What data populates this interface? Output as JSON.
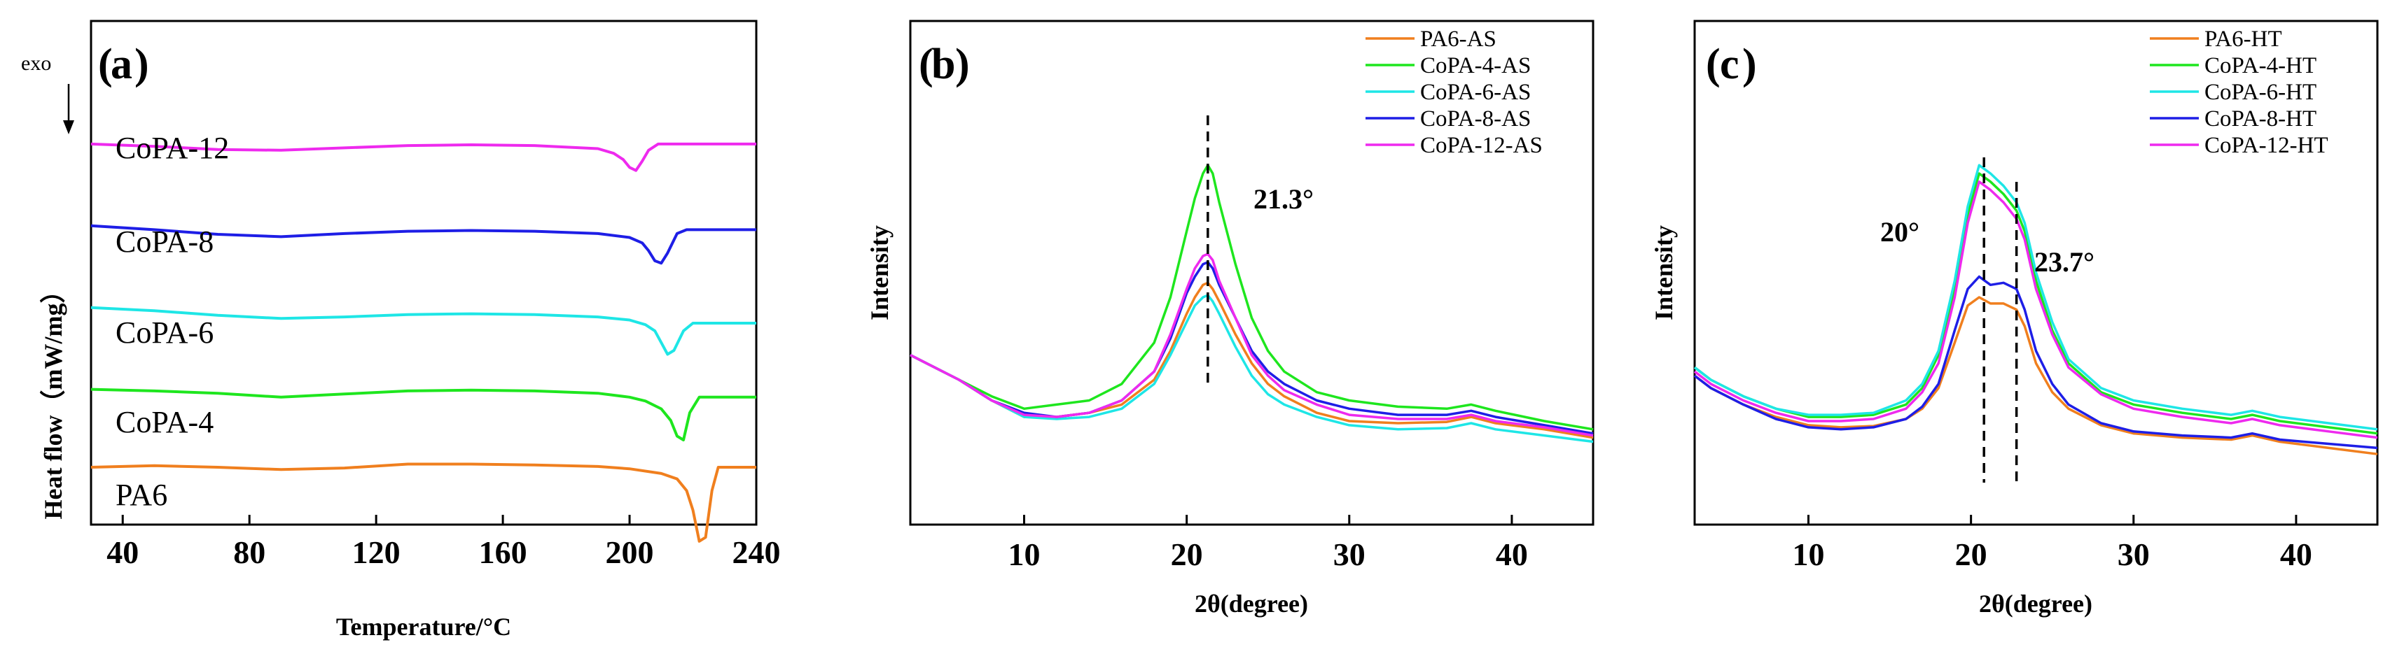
{
  "chart_data": [
    {
      "panel": "(a)",
      "panel_letter": "a",
      "type": "line",
      "title": "",
      "xlabel": "Temperature/°C",
      "ylabel": "Heat flow（mW/mg）",
      "direction_label": "exo",
      "xlim": [
        30,
        240
      ],
      "xticks": [
        40,
        80,
        120,
        160,
        200,
        240
      ],
      "grid": false,
      "series": [
        {
          "name": "PA6",
          "color": "#f07f1e",
          "offset": 0.0,
          "x": [
            30,
            50,
            70,
            90,
            110,
            130,
            150,
            170,
            190,
            200,
            210,
            215,
            218,
            220,
            222,
            224,
            226,
            228,
            232,
            240
          ],
          "y": [
            0.0,
            0.02,
            0.0,
            -0.03,
            -0.01,
            0.04,
            0.04,
            0.03,
            0.01,
            -0.02,
            -0.08,
            -0.15,
            -0.3,
            -0.55,
            -0.95,
            -0.9,
            -0.3,
            0.0,
            0.0,
            0.0
          ]
        },
        {
          "name": "CoPA-4",
          "color": "#1ee61e",
          "offset": 1.0,
          "x": [
            30,
            50,
            70,
            90,
            110,
            130,
            150,
            170,
            190,
            200,
            205,
            210,
            213,
            215,
            217,
            219,
            222,
            226,
            232,
            240
          ],
          "y": [
            0.0,
            -0.02,
            -0.05,
            -0.1,
            -0.06,
            -0.02,
            -0.01,
            -0.02,
            -0.05,
            -0.1,
            -0.15,
            -0.25,
            -0.4,
            -0.6,
            -0.65,
            -0.3,
            -0.1,
            -0.1,
            -0.1,
            -0.1
          ]
        },
        {
          "name": "CoPA-6",
          "color": "#1ee6e6",
          "offset": 2.05,
          "x": [
            30,
            50,
            70,
            90,
            110,
            130,
            150,
            170,
            190,
            200,
            205,
            208,
            210,
            212,
            214,
            217,
            220,
            226,
            232,
            240
          ],
          "y": [
            0.0,
            -0.04,
            -0.1,
            -0.14,
            -0.12,
            -0.09,
            -0.08,
            -0.09,
            -0.12,
            -0.16,
            -0.22,
            -0.3,
            -0.45,
            -0.6,
            -0.55,
            -0.3,
            -0.2,
            -0.2,
            -0.2,
            -0.2
          ]
        },
        {
          "name": "CoPA-8",
          "color": "#1e1ee6",
          "offset": 3.1,
          "x": [
            30,
            50,
            70,
            90,
            110,
            130,
            150,
            170,
            190,
            200,
            204,
            206,
            208,
            210,
            212,
            215,
            218,
            226,
            232,
            240
          ],
          "y": [
            0.0,
            -0.05,
            -0.11,
            -0.14,
            -0.1,
            -0.07,
            -0.06,
            -0.07,
            -0.1,
            -0.15,
            -0.22,
            -0.32,
            -0.45,
            -0.48,
            -0.35,
            -0.1,
            -0.05,
            -0.05,
            -0.05,
            -0.05
          ]
        },
        {
          "name": "CoPA-12",
          "color": "#ee2aee",
          "offset": 4.15,
          "x": [
            30,
            50,
            70,
            90,
            110,
            130,
            150,
            170,
            190,
            195,
            198,
            200,
            202,
            204,
            206,
            209,
            212,
            220,
            230,
            240
          ],
          "y": [
            0.0,
            -0.03,
            -0.07,
            -0.08,
            -0.05,
            -0.02,
            -0.01,
            -0.02,
            -0.06,
            -0.12,
            -0.2,
            -0.3,
            -0.34,
            -0.22,
            -0.08,
            0.0,
            0.0,
            0.0,
            0.0,
            0.0
          ]
        }
      ]
    },
    {
      "panel": "(b)",
      "panel_letter": "b",
      "type": "line",
      "title": "",
      "xlabel": "2θ(degree)",
      "ylabel": "Intensity",
      "xlim": [
        3,
        45
      ],
      "ylim": [
        0,
        100
      ],
      "xticks": [
        10,
        20,
        30,
        40
      ],
      "grid": false,
      "legend_position": "top-right",
      "annotations": [
        {
          "text": "21.3°",
          "x": 21.3
        }
      ],
      "series": [
        {
          "name": "PA6-AS",
          "color": "#f07f1e",
          "x": [
            3,
            4,
            6,
            8,
            10,
            12,
            14,
            16,
            18,
            19,
            20,
            20.5,
            21,
            21.3,
            21.6,
            22,
            23,
            24,
            25,
            26,
            28,
            30,
            33,
            36,
            37.5,
            39,
            42,
            45
          ],
          "y": [
            36,
            34,
            30,
            25,
            21,
            21,
            22,
            24,
            30,
            37,
            46,
            50,
            53,
            53.5,
            52,
            49,
            41,
            34,
            29,
            26,
            22,
            20,
            19.5,
            19.8,
            21,
            19.5,
            18,
            16
          ]
        },
        {
          "name": "CoPA-4-AS",
          "color": "#1ee61e",
          "x": [
            3,
            4,
            6,
            8,
            10,
            12,
            14,
            16,
            18,
            19,
            20,
            20.5,
            21,
            21.3,
            21.6,
            22,
            23,
            24,
            25,
            26,
            28,
            30,
            33,
            36,
            37.5,
            39,
            42,
            45
          ],
          "y": [
            36,
            34,
            30,
            26,
            23,
            24,
            25,
            29,
            39,
            50,
            66,
            74,
            80,
            82,
            80,
            73,
            58,
            45,
            37,
            32,
            27,
            25,
            23.5,
            23,
            24,
            22.5,
            20,
            18
          ]
        },
        {
          "name": "CoPA-6-AS",
          "color": "#1ee6e6",
          "x": [
            3,
            4,
            6,
            8,
            10,
            12,
            14,
            16,
            18,
            19,
            20,
            20.5,
            21,
            21.3,
            21.6,
            22,
            23,
            24,
            25,
            26,
            28,
            30,
            33,
            36,
            37.5,
            39,
            42,
            45
          ],
          "y": [
            36,
            34,
            30,
            25,
            21,
            20.5,
            21,
            23,
            29,
            36,
            44,
            48,
            50,
            50.5,
            49,
            46,
            38,
            31,
            26.5,
            24,
            21,
            19,
            18,
            18.3,
            19.5,
            18,
            16.5,
            15
          ]
        },
        {
          "name": "CoPA-8-AS",
          "color": "#1e1ee6",
          "x": [
            3,
            4,
            6,
            8,
            10,
            12,
            14,
            16,
            18,
            19,
            20,
            20.5,
            21,
            21.3,
            21.6,
            22,
            23,
            24,
            25,
            26,
            28,
            30,
            33,
            36,
            37.5,
            39,
            42,
            45
          ],
          "y": [
            36,
            34,
            30,
            25,
            22,
            21,
            22,
            25,
            32,
            40,
            51,
            55,
            58,
            58.5,
            57,
            53,
            45,
            37,
            32,
            29,
            25,
            23,
            21.5,
            21.5,
            22.5,
            21,
            19,
            17
          ]
        },
        {
          "name": "CoPA-12-AS",
          "color": "#ee2aee",
          "x": [
            3,
            4,
            6,
            8,
            10,
            12,
            14,
            16,
            18,
            19,
            20,
            20.5,
            21,
            21.3,
            21.6,
            22,
            23,
            24,
            25,
            26,
            28,
            30,
            33,
            36,
            37.5,
            39,
            42,
            45
          ],
          "y": [
            36,
            34,
            30,
            25,
            21.5,
            21,
            22,
            25,
            32,
            41,
            52,
            57,
            60,
            60.5,
            59,
            54,
            45,
            36,
            31,
            27.5,
            24,
            21.5,
            20.5,
            20.5,
            21.5,
            20,
            18.5,
            16.5
          ]
        }
      ]
    },
    {
      "panel": "(c)",
      "panel_letter": "c",
      "type": "line",
      "title": "",
      "xlabel": "2θ(degree)",
      "ylabel": "Intensity",
      "xlim": [
        3,
        45
      ],
      "ylim": [
        0,
        100
      ],
      "xticks": [
        10,
        20,
        30,
        40
      ],
      "grid": false,
      "legend_position": "top-right",
      "annotations": [
        {
          "text": "20°",
          "x": 20.8
        },
        {
          "text": "23.7°",
          "x": 22.8
        }
      ],
      "series": [
        {
          "name": "PA6-HT",
          "color": "#f07f1e",
          "x": [
            3,
            4,
            6,
            8,
            10,
            12,
            14,
            16,
            17,
            18,
            19,
            19.8,
            20.5,
            21.2,
            22,
            22.8,
            23.3,
            24,
            25,
            26,
            28,
            30,
            33,
            36,
            37.3,
            39,
            42,
            45
          ],
          "y": [
            31,
            28,
            24,
            21,
            19,
            18.5,
            18.8,
            20.5,
            23,
            28,
            39,
            48,
            50,
            48.5,
            48.5,
            47,
            43,
            34,
            27,
            23,
            19,
            17,
            16,
            15.5,
            16.5,
            15,
            13.5,
            12
          ]
        },
        {
          "name": "CoPA-4-HT",
          "color": "#1ee61e",
          "x": [
            3,
            4,
            6,
            8,
            10,
            12,
            14,
            16,
            17,
            18,
            19,
            19.8,
            20.5,
            21.2,
            22,
            22.8,
            23.3,
            24,
            25,
            26,
            28,
            30,
            33,
            36,
            37.3,
            39,
            42,
            45
          ],
          "y": [
            33,
            30,
            26,
            23,
            21,
            21,
            21.5,
            24,
            28,
            36,
            52,
            70,
            80,
            78,
            75,
            71,
            66,
            54,
            42,
            34,
            27,
            24,
            22,
            20.5,
            21.5,
            20,
            18.5,
            17
          ]
        },
        {
          "name": "CoPA-6-HT",
          "color": "#1ee6e6",
          "x": [
            3,
            4,
            6,
            8,
            10,
            12,
            14,
            16,
            17,
            18,
            19,
            19.8,
            20.5,
            21.2,
            22,
            22.8,
            23.3,
            24,
            25,
            26,
            28,
            30,
            33,
            36,
            37.3,
            39,
            42,
            45
          ],
          "y": [
            33,
            30,
            26,
            23,
            21.5,
            21.5,
            22,
            25,
            29,
            37,
            54,
            72,
            82,
            80,
            77,
            73,
            68,
            56,
            44,
            35,
            28,
            25,
            23,
            21.5,
            22.5,
            21,
            19.5,
            18
          ]
        },
        {
          "name": "CoPA-8-HT",
          "color": "#1e1ee6",
          "x": [
            3,
            4,
            6,
            8,
            10,
            12,
            14,
            16,
            17,
            18,
            19,
            19.8,
            20.5,
            21.2,
            22,
            22.8,
            23.3,
            24,
            25,
            26,
            28,
            30,
            33,
            36,
            37.3,
            39,
            42,
            45
          ],
          "y": [
            31,
            28,
            24,
            20.5,
            18.5,
            18,
            18.5,
            20.5,
            23.5,
            29,
            42,
            52,
            55,
            53,
            53.5,
            52,
            47,
            37,
            29,
            24,
            19.5,
            17.5,
            16.5,
            16,
            17,
            15.5,
            14.5,
            13.5
          ]
        },
        {
          "name": "CoPA-12-HT",
          "color": "#ee2aee",
          "x": [
            3,
            4,
            6,
            8,
            10,
            12,
            14,
            16,
            17,
            18,
            19,
            19.8,
            20.5,
            21.2,
            22,
            22.8,
            23.3,
            24,
            25,
            26,
            28,
            30,
            33,
            36,
            37.3,
            39,
            42,
            45
          ],
          "y": [
            32,
            29,
            25,
            22,
            20,
            20,
            20.5,
            23,
            27,
            34,
            50,
            68,
            78,
            76,
            73,
            69,
            64,
            52,
            41,
            33,
            26.5,
            23,
            21,
            19.5,
            20.5,
            19,
            17.5,
            16
          ]
        }
      ]
    }
  ],
  "sample_labels": [
    "CoPA-12",
    "CoPA-8",
    "CoPA-6",
    "CoPA-4",
    "PA6"
  ]
}
